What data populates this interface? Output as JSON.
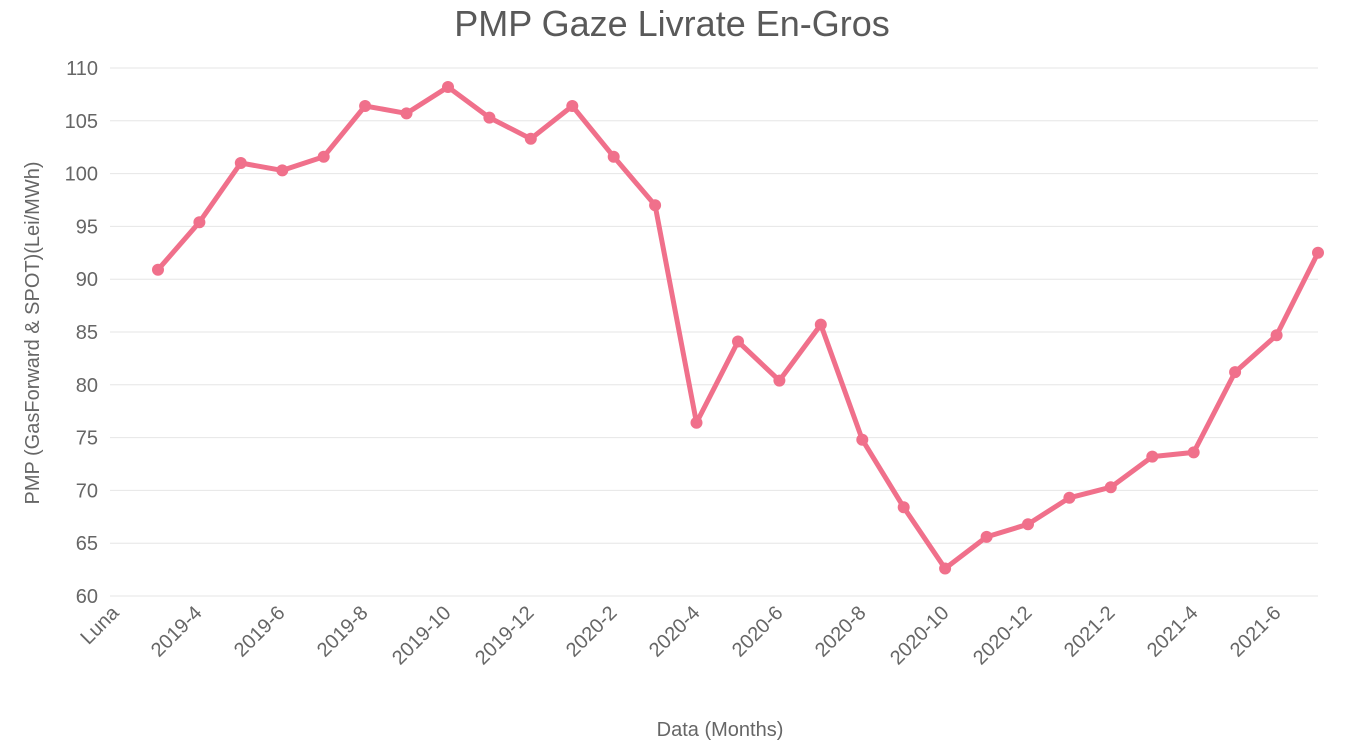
{
  "chart_data": {
    "type": "line",
    "title": "PMP Gaze Livrate En-Gros",
    "xlabel": "Data (Months)",
    "ylabel": "PMP (GasForward & SPOT)(Lei/MWh)",
    "ylim": [
      60,
      110
    ],
    "y_ticks": [
      60,
      65,
      70,
      75,
      80,
      85,
      90,
      95,
      100,
      105,
      110
    ],
    "grid": true,
    "x_tick_labels": [
      "Luna",
      "2019-4",
      "2019-6",
      "2019-8",
      "2019-10",
      "2019-12",
      "2020-2",
      "2020-4",
      "2020-6",
      "2020-8",
      "2020-10",
      "2020-12",
      "2021-2",
      "2021-4",
      "2021-6"
    ],
    "x": [
      "2019-3",
      "2019-4",
      "2019-5",
      "2019-6",
      "2019-7",
      "2019-8",
      "2019-9",
      "2019-10",
      "2019-11",
      "2019-12",
      "2020-1",
      "2020-2",
      "2020-3",
      "2020-4",
      "2020-5",
      "2020-6",
      "2020-7",
      "2020-8",
      "2020-9",
      "2020-10",
      "2020-11",
      "2020-12",
      "2021-1",
      "2021-2",
      "2021-3",
      "2021-4",
      "2021-5",
      "2021-6",
      "2021-7"
    ],
    "series": [
      {
        "values": [
          90.9,
          95.4,
          101.0,
          100.3,
          101.6,
          106.4,
          105.7,
          108.2,
          105.3,
          103.3,
          106.4,
          101.6,
          97.0,
          76.4,
          84.1,
          80.4,
          85.7,
          74.8,
          68.4,
          62.6,
          65.6,
          66.8,
          69.3,
          70.3,
          73.2,
          73.6,
          81.2,
          84.7,
          92.5
        ],
        "color": "#f0708b"
      }
    ]
  }
}
